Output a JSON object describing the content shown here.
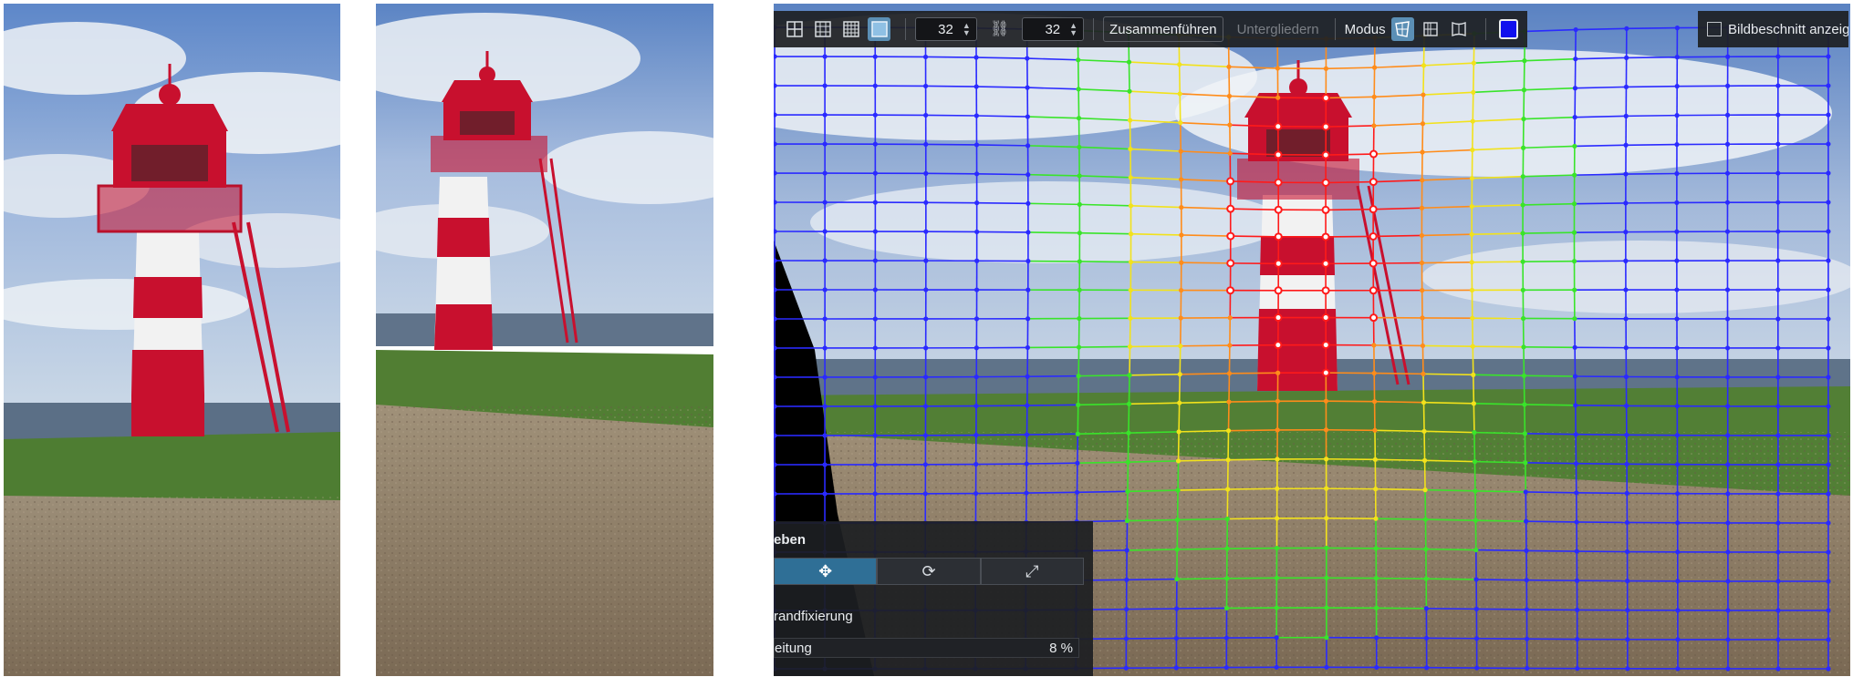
{
  "toolbar": {
    "grid_icons": [
      "grid-2x2-icon",
      "grid-3x3-icon",
      "grid-4x4-icon",
      "grid-fine-icon"
    ],
    "columns_value": "32",
    "rows_value": "32",
    "link_icon": "chain-link-icon",
    "merge_label": "Zusammenführen",
    "split_label": "Untergliedern",
    "mode_label": "Modus",
    "mode_icons": [
      "warp-perspective-icon",
      "warp-grid-icon",
      "warp-mesh-icon"
    ],
    "color_swatch": "#1010ee"
  },
  "crop_toggle": {
    "label": "Bildbeschnitt anzeigen",
    "checked": false
  },
  "panel": {
    "title": "eben",
    "tools": [
      "move-icon",
      "rotate-icon",
      "scale-icon"
    ],
    "fix_label": "randfixierung",
    "spread_label": "eitung",
    "spread_value": "8 %"
  },
  "colors": {
    "grid_blue": "#2a2aff",
    "grid_green": "#39e42a",
    "grid_yellow": "#f2e21b",
    "grid_orange": "#ff8c1a",
    "grid_red": "#ff1a1a"
  }
}
